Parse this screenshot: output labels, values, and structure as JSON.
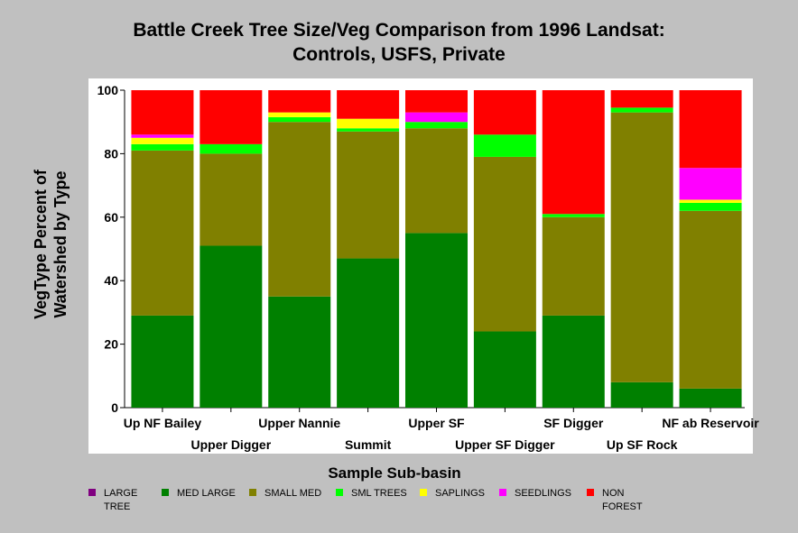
{
  "chart_data": {
    "type": "bar",
    "stacked": true,
    "title": "Battle Creek Tree Size/Veg Comparison from 1996 Landsat:",
    "subtitle": "Controls, USFS, Private",
    "xlabel": "Sample Sub-basin",
    "ylabel": "VegType Percent of Watershed by Type",
    "ylim": [
      0,
      100
    ],
    "yticks": [
      0,
      20,
      40,
      60,
      80,
      100
    ],
    "categories": [
      "Up NF Bailey",
      "Upper Digger",
      "Upper Nannie",
      "Summit",
      "Upper SF",
      "Upper SF Digger",
      "SF Digger",
      "Up SF Rock",
      "NF ab Reservoir"
    ],
    "series": [
      {
        "name": "LARGE TREE",
        "color": "#800080",
        "values": [
          0,
          0,
          0,
          0,
          0,
          0,
          0,
          0,
          0
        ]
      },
      {
        "name": "MED LARGE",
        "color": "#008000",
        "values": [
          29,
          51,
          35,
          47,
          55,
          24,
          29,
          8,
          6
        ]
      },
      {
        "name": "SMALL MED",
        "color": "#808000",
        "values": [
          52,
          29,
          55,
          40,
          33,
          55,
          31,
          85,
          56
        ]
      },
      {
        "name": "SML TREES",
        "color": "#00ff00",
        "values": [
          2,
          3,
          1.5,
          1,
          2,
          7,
          1,
          1.5,
          2.5
        ]
      },
      {
        "name": "SAPLINGS",
        "color": "#ffff00",
        "values": [
          2,
          0,
          1.5,
          3,
          0,
          0,
          0,
          0,
          1
        ]
      },
      {
        "name": "SEEDLINGS",
        "color": "#ff00ff",
        "values": [
          1,
          0,
          0,
          0,
          3,
          0,
          0,
          0,
          10
        ]
      },
      {
        "name": "NON FOREST",
        "color": "#ff0000",
        "values": [
          14,
          17,
          7,
          9,
          7,
          14,
          39,
          5.5,
          24.5
        ]
      }
    ],
    "legend_position": "bottom",
    "grid": false
  },
  "legend": [
    {
      "label": "LARGE\nTREE",
      "color": "#800080"
    },
    {
      "label": "MED LARGE",
      "color": "#008000"
    },
    {
      "label": "SMALL MED",
      "color": "#808000"
    },
    {
      "label": "SML TREES",
      "color": "#00ff00"
    },
    {
      "label": "SAPLINGS",
      "color": "#ffff00"
    },
    {
      "label": "SEEDLINGS",
      "color": "#ff00ff"
    },
    {
      "label": "NON\nFOREST",
      "color": "#ff0000"
    }
  ],
  "ylabel_lines": [
    "VegType Percent of",
    "Watershed by Type"
  ]
}
